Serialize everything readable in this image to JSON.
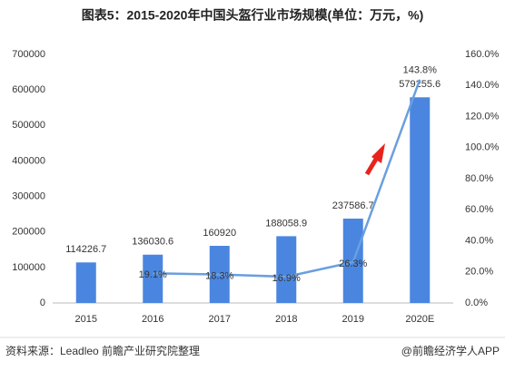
{
  "chart_data": {
    "type": "bar",
    "title": "图表5：2015-2020年中国头盔行业市场规模(单位：万元，%)",
    "categories": [
      "2015",
      "2016",
      "2017",
      "2018",
      "2019",
      "2020E"
    ],
    "series": [
      {
        "type": "bar",
        "color": "#4a86e0",
        "values": [
          114226.7,
          136030.6,
          160920,
          188058.9,
          237586.7,
          579255.6
        ]
      },
      {
        "type": "line",
        "axis": "y2",
        "color": "#6a9fe0",
        "values": [
          null,
          19.1,
          18.3,
          16.9,
          26.3,
          143.8
        ],
        "value_labels": [
          null,
          "19.1%",
          "18.3%",
          "16.9%",
          "26.3%",
          "143.8%"
        ]
      }
    ],
    "ylim": [
      0,
      700000
    ],
    "yticks": [
      0,
      100000,
      200000,
      300000,
      400000,
      500000,
      600000,
      700000
    ],
    "y2lim": [
      0,
      160
    ],
    "y2ticks": [
      {
        "value": 0,
        "label": "0.0%"
      },
      {
        "value": 20,
        "label": "20.0%"
      },
      {
        "value": 40,
        "label": "40.0%"
      },
      {
        "value": 60,
        "label": "60.0%"
      },
      {
        "value": 80,
        "label": "80.0%"
      },
      {
        "value": 100,
        "label": "100.0%"
      },
      {
        "value": 120,
        "label": "120.0%"
      },
      {
        "value": 140,
        "label": "140.0%"
      },
      {
        "value": 160,
        "label": "160.0%"
      }
    ],
    "grid": false,
    "source": "资料来源：Leadleo 前瞻产业研究院整理",
    "credit": "@前瞻经济学人APP"
  }
}
